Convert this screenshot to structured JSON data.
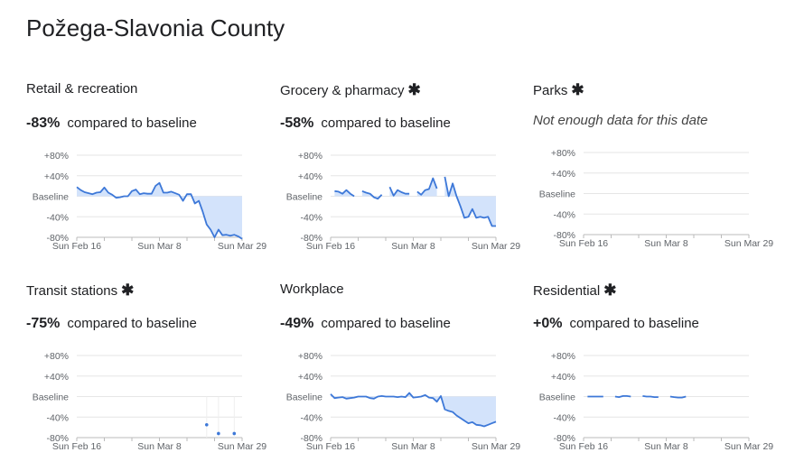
{
  "page_title": "Požega-Slavonia County",
  "compared_label": "compared to baseline",
  "colors": {
    "line": "#3d78d8",
    "fill": "#d3e3fb",
    "grid": "#e6e6e6"
  },
  "chart_data": {
    "type": "line",
    "ylim": [
      -80,
      80
    ],
    "y_ticks": [
      {
        "value": 80,
        "label": "+80%"
      },
      {
        "value": 40,
        "label": "+40%"
      },
      {
        "value": 0,
        "label": "Baseline"
      },
      {
        "value": -40,
        "label": "-40%"
      },
      {
        "value": -80,
        "label": "-80%"
      }
    ],
    "x_tick_labels": [
      "Sun Feb 16",
      "Sun Mar 8",
      "Sun Mar 29"
    ],
    "x": [
      "Feb 16",
      "Feb 17",
      "Feb 18",
      "Feb 19",
      "Feb 20",
      "Feb 21",
      "Feb 22",
      "Feb 23",
      "Feb 24",
      "Feb 25",
      "Feb 26",
      "Feb 27",
      "Feb 28",
      "Feb 29",
      "Mar 1",
      "Mar 2",
      "Mar 3",
      "Mar 4",
      "Mar 5",
      "Mar 6",
      "Mar 7",
      "Mar 8",
      "Mar 9",
      "Mar 10",
      "Mar 11",
      "Mar 12",
      "Mar 13",
      "Mar 14",
      "Mar 15",
      "Mar 16",
      "Mar 17",
      "Mar 18",
      "Mar 19",
      "Mar 20",
      "Mar 21",
      "Mar 22",
      "Mar 23",
      "Mar 24",
      "Mar 25",
      "Mar 26",
      "Mar 27",
      "Mar 28",
      "Mar 29"
    ],
    "charts": [
      {
        "title": "Retail & recreation",
        "starred": false,
        "change": "-83%",
        "style": "line",
        "values": [
          18,
          12,
          8,
          6,
          4,
          7,
          8,
          17,
          7,
          3,
          -3,
          -2,
          0,
          0,
          10,
          13,
          4,
          6,
          5,
          5,
          20,
          26,
          7,
          7,
          9,
          6,
          3,
          -9,
          4,
          4,
          -14,
          -9,
          -30,
          -55,
          -65,
          -80,
          -65,
          -76,
          -75,
          -77,
          -75,
          -78,
          -83
        ]
      },
      {
        "title": "Grocery & pharmacy",
        "starred": true,
        "change": "-58%",
        "style": "line",
        "values": [
          null,
          10,
          9,
          5,
          12,
          5,
          0,
          null,
          10,
          7,
          5,
          -2,
          -5,
          3,
          null,
          18,
          1,
          12,
          8,
          5,
          5,
          null,
          9,
          3,
          12,
          14,
          35,
          15,
          null,
          38,
          0,
          25,
          0,
          -20,
          -42,
          -40,
          -25,
          -42,
          -40,
          -42,
          -40,
          -58,
          -58
        ]
      },
      {
        "title": "Parks",
        "starred": true,
        "change": null,
        "no_data": "Not enough data for this date",
        "style": "line",
        "values": []
      },
      {
        "title": "Transit stations",
        "starred": true,
        "change": "-75%",
        "style": "dots",
        "values": [
          null,
          null,
          null,
          null,
          null,
          null,
          null,
          null,
          null,
          null,
          null,
          null,
          null,
          null,
          null,
          null,
          null,
          null,
          null,
          null,
          null,
          null,
          null,
          null,
          null,
          null,
          null,
          null,
          null,
          null,
          null,
          null,
          null,
          -55,
          null,
          null,
          -72,
          null,
          null,
          null,
          -72,
          null,
          null
        ]
      },
      {
        "title": "Workplace",
        "starred": false,
        "change": "-49%",
        "style": "line",
        "values": [
          5,
          -3,
          -2,
          -1,
          -4,
          -3,
          -2,
          0,
          0,
          0,
          -3,
          -4,
          0,
          1,
          0,
          0,
          0,
          -1,
          0,
          -1,
          7,
          -2,
          -1,
          0,
          3,
          -2,
          -3,
          -10,
          1,
          -25,
          -28,
          -30,
          -37,
          -42,
          -47,
          -52,
          -50,
          -55,
          -56,
          -58,
          -55,
          -52,
          -49
        ]
      },
      {
        "title": "Residential",
        "starred": true,
        "change": "+0%",
        "style": "line",
        "values": [
          null,
          0,
          0,
          0,
          0,
          0,
          null,
          null,
          0,
          -1,
          1,
          1,
          0,
          null,
          null,
          1,
          0,
          0,
          -1,
          -1,
          null,
          null,
          0,
          -1,
          -2,
          -2,
          0,
          null,
          null,
          null,
          null,
          null,
          null,
          null,
          null,
          null,
          null,
          null,
          null,
          null,
          null,
          null,
          null
        ]
      }
    ]
  }
}
